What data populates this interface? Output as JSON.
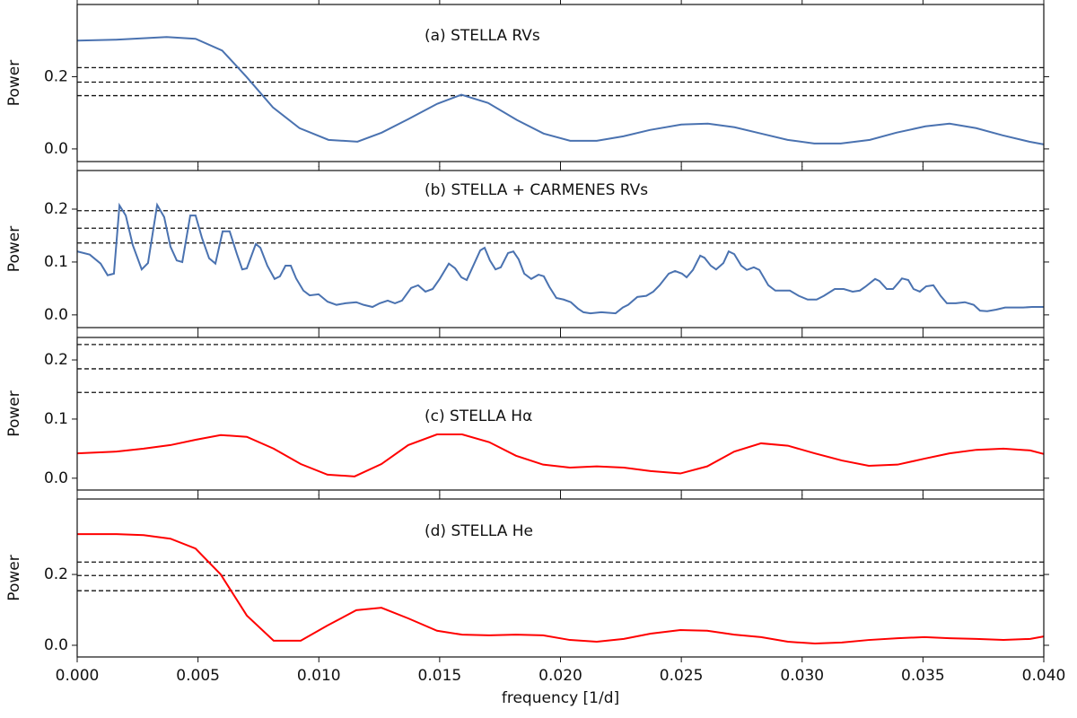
{
  "chart_data": [
    {
      "type": "line",
      "annotation": "(a) STELLA RVs",
      "ylabel": "Power",
      "color": "#4a72b0",
      "xlim": [
        0,
        0.04
      ],
      "ylim": [
        -0.035,
        0.4
      ],
      "yticks": [
        {
          "value": 0,
          "label": "0.0"
        },
        0.2
      ],
      "hlines": [
        0.225,
        0.185,
        0.1475
      ],
      "x": [
        0,
        0.0016,
        0.0037,
        0.0049,
        0.006,
        0.007,
        0.0081,
        0.0092,
        0.0104,
        0.0116,
        0.0126,
        0.0137,
        0.0149,
        0.0159,
        0.017,
        0.0182,
        0.0193,
        0.0204,
        0.0215,
        0.0226,
        0.0237,
        0.025,
        0.0261,
        0.0272,
        0.0283,
        0.0294,
        0.0305,
        0.0316,
        0.0328,
        0.0339,
        0.0351,
        0.0361,
        0.0372,
        0.0383,
        0.0394,
        0.04
      ],
      "values": [
        0.3,
        0.3025,
        0.31,
        0.305,
        0.2725,
        0.2,
        0.115,
        0.0575,
        0.025,
        0.02,
        0.045,
        0.0825,
        0.125,
        0.15,
        0.1275,
        0.08,
        0.0425,
        0.0225,
        0.0225,
        0.035,
        0.0525,
        0.0675,
        0.07,
        0.06,
        0.0425,
        0.025,
        0.015,
        0.015,
        0.025,
        0.045,
        0.0625,
        0.07,
        0.0575,
        0.0375,
        0.02,
        0.0125
      ]
    },
    {
      "type": "line",
      "annotation": "(b) STELLA + CARMENES RVs",
      "ylabel": "Power",
      "color": "#4a72b0",
      "xlim": [
        0,
        0.04
      ],
      "ylim": [
        -0.024,
        0.273
      ],
      "yticks": [
        {
          "value": 0,
          "label": "0.0"
        },
        0.1,
        0.2
      ],
      "hlines": [
        0.197,
        0.164,
        0.136
      ],
      "x": [
        0,
        0.00052,
        0.00097,
        0.00126,
        0.00152,
        0.00175,
        0.00201,
        0.0023,
        0.00267,
        0.00293,
        0.00331,
        0.0036,
        0.00386,
        0.00412,
        0.00435,
        0.00468,
        0.0049,
        0.00516,
        0.00546,
        0.00572,
        0.00602,
        0.00631,
        0.00661,
        0.00683,
        0.00702,
        0.00739,
        0.00758,
        0.00787,
        0.00817,
        0.00839,
        0.00862,
        0.00884,
        0.00906,
        0.00936,
        0.00962,
        0.00999,
        0.01036,
        0.01073,
        0.0111,
        0.01155,
        0.01185,
        0.01222,
        0.01252,
        0.01285,
        0.01315,
        0.01344,
        0.01382,
        0.01411,
        0.01441,
        0.01471,
        0.015,
        0.01538,
        0.01564,
        0.0159,
        0.01612,
        0.01638,
        0.01668,
        0.01686,
        0.01708,
        0.01731,
        0.01753,
        0.01783,
        0.01805,
        0.01827,
        0.0185,
        0.01879,
        0.01909,
        0.01931,
        0.01954,
        0.01983,
        0.02013,
        0.02043,
        0.02072,
        0.02095,
        0.02124,
        0.02169,
        0.02228,
        0.02258,
        0.0228,
        0.02318,
        0.02355,
        0.02384,
        0.0241,
        0.02448,
        0.02474,
        0.02503,
        0.02522,
        0.02548,
        0.02578,
        0.02596,
        0.02622,
        0.02644,
        0.02674,
        0.02696,
        0.02719,
        0.02748,
        0.02771,
        0.028,
        0.02823,
        0.0286,
        0.02889,
        0.02949,
        0.02986,
        0.03023,
        0.0306,
        0.0309,
        0.03135,
        0.03172,
        0.03209,
        0.03239,
        0.03261,
        0.03302,
        0.0332,
        0.0335,
        0.03376,
        0.03395,
        0.03413,
        0.03439,
        0.03461,
        0.03487,
        0.03513,
        0.03543,
        0.03573,
        0.03599,
        0.03636,
        0.03673,
        0.0371,
        0.03736,
        0.03766,
        0.03803,
        0.0384,
        0.03915,
        0.03952,
        0.04
      ],
      "values": [
        0.12,
        0.114,
        0.097,
        0.075,
        0.078,
        0.207,
        0.188,
        0.132,
        0.086,
        0.098,
        0.208,
        0.185,
        0.129,
        0.103,
        0.1,
        0.188,
        0.188,
        0.146,
        0.107,
        0.097,
        0.158,
        0.158,
        0.115,
        0.086,
        0.088,
        0.134,
        0.127,
        0.093,
        0.068,
        0.073,
        0.093,
        0.093,
        0.069,
        0.046,
        0.037,
        0.039,
        0.025,
        0.019,
        0.022,
        0.024,
        0.019,
        0.015,
        0.022,
        0.027,
        0.022,
        0.027,
        0.051,
        0.056,
        0.044,
        0.049,
        0.068,
        0.097,
        0.088,
        0.071,
        0.066,
        0.092,
        0.122,
        0.127,
        0.103,
        0.086,
        0.09,
        0.117,
        0.12,
        0.105,
        0.078,
        0.068,
        0.076,
        0.073,
        0.053,
        0.032,
        0.029,
        0.024,
        0.012,
        0.005,
        0.003,
        0.005,
        0.003,
        0.014,
        0.019,
        0.034,
        0.036,
        0.044,
        0.056,
        0.078,
        0.083,
        0.078,
        0.071,
        0.085,
        0.112,
        0.108,
        0.093,
        0.086,
        0.098,
        0.12,
        0.115,
        0.093,
        0.085,
        0.09,
        0.085,
        0.056,
        0.046,
        0.046,
        0.036,
        0.029,
        0.029,
        0.036,
        0.049,
        0.049,
        0.044,
        0.046,
        0.053,
        0.068,
        0.064,
        0.049,
        0.049,
        0.059,
        0.069,
        0.066,
        0.049,
        0.044,
        0.054,
        0.056,
        0.036,
        0.022,
        0.022,
        0.024,
        0.019,
        0.008,
        0.007,
        0.01,
        0.014,
        0.014,
        0.015,
        0.015
      ]
    },
    {
      "type": "line",
      "annotation": "(c) STELLA Hα",
      "ylabel": "Power",
      "color": "#ff0000",
      "xlim": [
        0,
        0.04
      ],
      "ylim": [
        -0.02,
        0.238
      ],
      "yticks": [
        {
          "value": 0,
          "label": "0.0"
        },
        0.1,
        0.2
      ],
      "hlines": [
        0.226,
        0.185,
        0.145
      ],
      "x": [
        0,
        0.00163,
        0.00275,
        0.00386,
        0.0049,
        0.00594,
        0.00702,
        0.00813,
        0.00925,
        0.01036,
        0.01148,
        0.01259,
        0.0137,
        0.01489,
        0.01593,
        0.01705,
        0.01816,
        0.01928,
        0.02039,
        0.0215,
        0.02262,
        0.02373,
        0.02496,
        0.02607,
        0.02719,
        0.0283,
        0.02941,
        0.03053,
        0.03164,
        0.03276,
        0.03395,
        0.03506,
        0.0361,
        0.03721,
        0.03833,
        0.03944,
        0.04
      ],
      "values": [
        0.042,
        0.045,
        0.05,
        0.056,
        0.065,
        0.073,
        0.07,
        0.05,
        0.024,
        0.006,
        0.003,
        0.024,
        0.056,
        0.074,
        0.074,
        0.061,
        0.038,
        0.023,
        0.018,
        0.02,
        0.018,
        0.012,
        0.008,
        0.02,
        0.045,
        0.059,
        0.055,
        0.042,
        0.03,
        0.021,
        0.023,
        0.033,
        0.042,
        0.048,
        0.05,
        0.047,
        0.041
      ]
    },
    {
      "type": "line",
      "annotation": "(d) STELLA He",
      "ylabel": "Power",
      "xlabel": "frequency [1/d]",
      "color": "#ff0000",
      "xlim": [
        0,
        0.04
      ],
      "ylim": [
        -0.033,
        0.413
      ],
      "yticks": [
        {
          "value": 0,
          "label": "0.0"
        },
        0.2
      ],
      "xticks": [
        {
          "value": 0,
          "label": "0.000"
        },
        {
          "value": 0.005,
          "label": "0.005"
        },
        {
          "value": 0.01,
          "label": "0.010"
        },
        {
          "value": 0.015,
          "label": "0.015"
        },
        {
          "value": 0.02,
          "label": "0.020"
        },
        {
          "value": 0.025,
          "label": "0.025"
        },
        {
          "value": 0.03,
          "label": "0.030"
        },
        {
          "value": 0.035,
          "label": "0.035"
        },
        {
          "value": 0.04,
          "label": "0.040"
        }
      ],
      "hlines": [
        0.235,
        0.197,
        0.154
      ],
      "x": [
        0,
        0.00163,
        0.00275,
        0.00386,
        0.0049,
        0.00594,
        0.00702,
        0.00813,
        0.00925,
        0.01036,
        0.01155,
        0.01259,
        0.0137,
        0.01489,
        0.01593,
        0.01705,
        0.01816,
        0.01928,
        0.02039,
        0.0215,
        0.02262,
        0.02373,
        0.02496,
        0.02607,
        0.02719,
        0.0283,
        0.02941,
        0.03053,
        0.03164,
        0.03276,
        0.03395,
        0.03506,
        0.0361,
        0.03721,
        0.03833,
        0.03944,
        0.04
      ],
      "values": [
        0.314,
        0.314,
        0.311,
        0.301,
        0.273,
        0.2,
        0.084,
        0.013,
        0.013,
        0.056,
        0.099,
        0.106,
        0.076,
        0.041,
        0.03,
        0.028,
        0.03,
        0.028,
        0.015,
        0.01,
        0.018,
        0.033,
        0.043,
        0.041,
        0.03,
        0.023,
        0.01,
        0.005,
        0.008,
        0.015,
        0.02,
        0.023,
        0.02,
        0.018,
        0.015,
        0.018,
        0.025
      ]
    }
  ]
}
